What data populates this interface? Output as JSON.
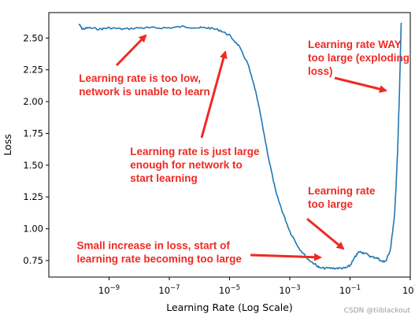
{
  "chart_data": {
    "type": "line",
    "xlabel": "Learning Rate (Log Scale)",
    "ylabel": "Loss",
    "xscale": "log",
    "xlim": [
      1e-11,
      10.0
    ],
    "ylim": [
      0.62,
      2.7
    ],
    "xticks": [
      {
        "value": 1e-09,
        "base": "10",
        "exp": "−9"
      },
      {
        "value": 1e-07,
        "base": "10",
        "exp": "−7"
      },
      {
        "value": 1e-05,
        "base": "10",
        "exp": "−5"
      },
      {
        "value": 0.001,
        "base": "10",
        "exp": "−3"
      },
      {
        "value": 0.1,
        "base": "10",
        "exp": "−1"
      },
      {
        "value": 10.0,
        "base": "10",
        "exp": "1"
      }
    ],
    "yticks": [
      {
        "value": 0.75,
        "label": "0.75"
      },
      {
        "value": 1.0,
        "label": "1.00"
      },
      {
        "value": 1.25,
        "label": "1.25"
      },
      {
        "value": 1.5,
        "label": "1.50"
      },
      {
        "value": 1.75,
        "label": "1.75"
      },
      {
        "value": 2.0,
        "label": "2.00"
      },
      {
        "value": 2.25,
        "label": "2.25"
      },
      {
        "value": 2.5,
        "label": "2.50"
      }
    ],
    "series": [
      {
        "color": "#1f77b4",
        "points": [
          [
            1e-10,
            2.61
          ],
          [
            1.3e-10,
            2.57
          ],
          [
            2e-10,
            2.58
          ],
          [
            5e-10,
            2.57
          ],
          [
            1e-09,
            2.58
          ],
          [
            3e-09,
            2.57
          ],
          [
            1e-08,
            2.58
          ],
          [
            3e-08,
            2.58
          ],
          [
            1e-07,
            2.58
          ],
          [
            3e-07,
            2.59
          ],
          [
            1e-06,
            2.58
          ],
          [
            2e-06,
            2.58
          ],
          [
            5e-06,
            2.56
          ],
          [
            1e-05,
            2.52
          ],
          [
            2e-05,
            2.44
          ],
          [
            4e-05,
            2.3
          ],
          [
            7e-05,
            2.1
          ],
          [
            0.0001,
            1.93
          ],
          [
            0.0002,
            1.55
          ],
          [
            0.00035,
            1.28
          ],
          [
            0.0006,
            1.12
          ],
          [
            0.001,
            0.98
          ],
          [
            0.002,
            0.85
          ],
          [
            0.004,
            0.76
          ],
          [
            0.007,
            0.72
          ],
          [
            0.01,
            0.69
          ],
          [
            0.02,
            0.69
          ],
          [
            0.04,
            0.69
          ],
          [
            0.07,
            0.69
          ],
          [
            0.1,
            0.71
          ],
          [
            0.15,
            0.78
          ],
          [
            0.2,
            0.82
          ],
          [
            0.3,
            0.81
          ],
          [
            0.5,
            0.78
          ],
          [
            0.8,
            0.77
          ],
          [
            1.2,
            0.74
          ],
          [
            1.6,
            0.75
          ],
          [
            2.2,
            0.84
          ],
          [
            3,
            1.1
          ],
          [
            3.8,
            1.6
          ],
          [
            4.4,
            2.1
          ],
          [
            5,
            2.62
          ]
        ]
      }
    ],
    "annotations": [
      {
        "lines": [
          "Learning rate is too low,",
          "network is unable to learn"
        ],
        "x": 1e-10,
        "y": 2.155
      },
      {
        "lines": [
          "Learning rate is just large",
          "enough for network to",
          "start learning"
        ],
        "x": 5e-09,
        "y": 1.58
      },
      {
        "lines": [
          "Learning rate WAY",
          "too large (exploding",
          "loss)"
        ],
        "x": 0.004,
        "y": 2.42
      },
      {
        "lines": [
          "Learning rate",
          "too large"
        ],
        "x": 0.004,
        "y": 1.27
      },
      {
        "lines": [
          "Small increase in loss, start of",
          "learning rate becoming too large"
        ],
        "x": 8.5e-11,
        "y": 0.84
      }
    ],
    "annotation_color": "#ee2a24",
    "grid": false,
    "legend": "none"
  },
  "watermark": "CSDN @tiiblackout"
}
